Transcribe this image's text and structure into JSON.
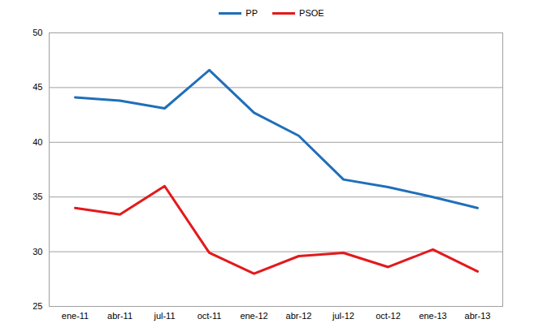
{
  "chart_data": {
    "type": "line",
    "categories": [
      "ene-11",
      "abr-11",
      "jul-11",
      "oct-11",
      "ene-12",
      "abr-12",
      "jul-12",
      "oct-12",
      "ene-13",
      "abr-13"
    ],
    "series": [
      {
        "name": "PP",
        "color": "#1f6fba",
        "values": [
          44.1,
          43.8,
          43.1,
          46.6,
          42.7,
          40.6,
          36.6,
          35.9,
          35.0,
          34.0
        ]
      },
      {
        "name": "PSOE",
        "color": "#e3191c",
        "values": [
          34.0,
          33.4,
          36.0,
          29.9,
          28.0,
          29.6,
          29.9,
          28.6,
          30.2,
          28.2
        ]
      }
    ],
    "ylim": [
      25,
      50
    ],
    "yticks": [
      25,
      30,
      35,
      40,
      45,
      50
    ],
    "grid": true,
    "legend": "top"
  }
}
